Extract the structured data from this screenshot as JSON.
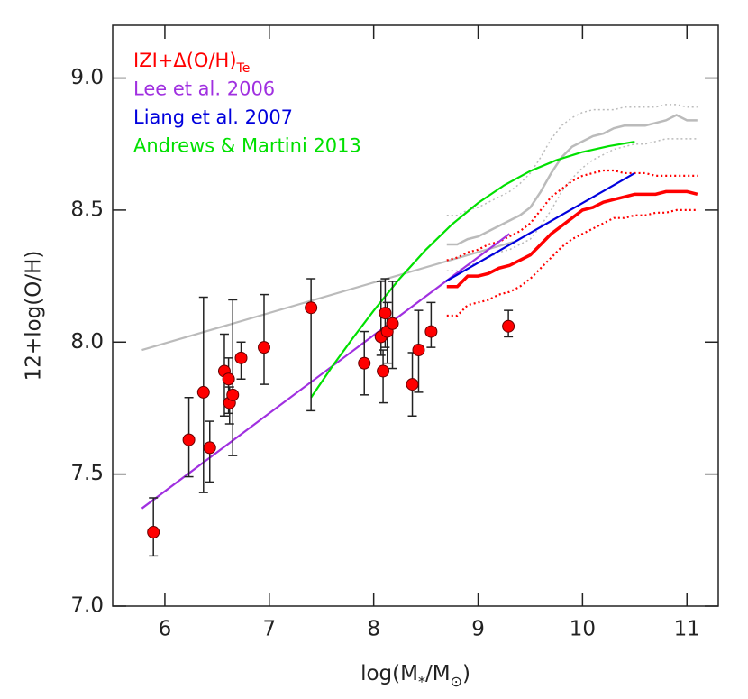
{
  "chart_data": {
    "type": "scatter",
    "xlabel_parts": [
      {
        "text": "log(M"
      },
      {
        "text": "*",
        "sub": true
      },
      {
        "text": "/M"
      },
      {
        "text": "⊙",
        "sub": true
      },
      {
        "text": ")"
      }
    ],
    "ylabel": "12+log(O/H)",
    "xlim": [
      5.5,
      11.3
    ],
    "ylim": [
      7.0,
      9.2
    ],
    "xticks": [
      6,
      7,
      8,
      9,
      10,
      11
    ],
    "yticks": [
      {
        "value": 7,
        "label": "7.0"
      },
      7.5,
      {
        "value": 8,
        "label": "8.0"
      },
      8.5,
      {
        "value": 9,
        "label": "9.0"
      }
    ],
    "series": [
      {
        "mode": "lines",
        "color": "#bbbbbb",
        "width": 2.2,
        "x": [
          5.78,
          9.34
        ],
        "values": [
          7.97,
          8.38
        ]
      },
      {
        "mode": "lines",
        "color": "#bbbbbb",
        "width": 1.5,
        "dash": true,
        "x": [
          8.7,
          8.8,
          8.9,
          9.0,
          9.1,
          9.2,
          9.3,
          9.4,
          9.5,
          9.6,
          9.7,
          9.8,
          9.9,
          10.0,
          10.1,
          10.2,
          10.3,
          10.4,
          10.5,
          10.6,
          10.7,
          10.8,
          10.9,
          11.0,
          11.1
        ],
        "values": [
          8.48,
          8.48,
          8.5,
          8.51,
          8.53,
          8.55,
          8.57,
          8.6,
          8.64,
          8.7,
          8.77,
          8.82,
          8.85,
          8.87,
          8.88,
          8.88,
          8.88,
          8.89,
          8.89,
          8.89,
          8.89,
          8.9,
          8.9,
          8.89,
          8.89
        ]
      },
      {
        "mode": "lines",
        "color": "#bbbbbb",
        "width": 1.5,
        "dash": true,
        "x": [
          8.7,
          8.8,
          8.9,
          9.0,
          9.1,
          9.2,
          9.3,
          9.4,
          9.5,
          9.6,
          9.7,
          9.8,
          9.9,
          10.0,
          10.1,
          10.2,
          10.3,
          10.4,
          10.5,
          10.6,
          10.7,
          10.8,
          10.9,
          11.0,
          11.1
        ],
        "values": [
          8.27,
          8.27,
          8.29,
          8.3,
          8.32,
          8.34,
          8.35,
          8.37,
          8.39,
          8.44,
          8.5,
          8.57,
          8.62,
          8.66,
          8.69,
          8.71,
          8.73,
          8.74,
          8.75,
          8.75,
          8.76,
          8.77,
          8.77,
          8.77,
          8.77
        ]
      },
      {
        "mode": "lines",
        "color": "#bbbbbb",
        "width": 2.5,
        "x": [
          8.7,
          8.8,
          8.9,
          9.0,
          9.1,
          9.2,
          9.3,
          9.4,
          9.5,
          9.6,
          9.7,
          9.8,
          9.9,
          10.0,
          10.1,
          10.2,
          10.3,
          10.4,
          10.5,
          10.6,
          10.7,
          10.8,
          10.9,
          11.0,
          11.1
        ],
        "values": [
          8.37,
          8.37,
          8.39,
          8.4,
          8.42,
          8.44,
          8.46,
          8.48,
          8.51,
          8.57,
          8.64,
          8.7,
          8.74,
          8.76,
          8.78,
          8.79,
          8.81,
          8.82,
          8.82,
          8.82,
          8.83,
          8.84,
          8.86,
          8.84,
          8.84
        ]
      },
      {
        "mode": "lines",
        "color": "#ff0000",
        "width": 2.2,
        "dash": true,
        "x": [
          8.7,
          8.8,
          8.9,
          9.0,
          9.1,
          9.2,
          9.3,
          9.4,
          9.5,
          9.6,
          9.7,
          9.8,
          9.9,
          10.0,
          10.1,
          10.2,
          10.3,
          10.4,
          10.5,
          10.6,
          10.7,
          10.8,
          10.9,
          11.0,
          11.1
        ],
        "values": [
          8.31,
          8.32,
          8.34,
          8.35,
          8.37,
          8.38,
          8.4,
          8.42,
          8.45,
          8.5,
          8.55,
          8.58,
          8.61,
          8.63,
          8.64,
          8.65,
          8.65,
          8.64,
          8.64,
          8.64,
          8.63,
          8.63,
          8.63,
          8.63,
          8.63
        ]
      },
      {
        "mode": "lines",
        "color": "#ff0000",
        "width": 2.2,
        "dash": true,
        "x": [
          8.7,
          8.8,
          8.9,
          9.0,
          9.1,
          9.2,
          9.3,
          9.4,
          9.5,
          9.6,
          9.7,
          9.8,
          9.9,
          10.0,
          10.1,
          10.2,
          10.3,
          10.4,
          10.5,
          10.6,
          10.7,
          10.8,
          10.9,
          11.0,
          11.1
        ],
        "values": [
          8.1,
          8.1,
          8.14,
          8.15,
          8.16,
          8.18,
          8.19,
          8.21,
          8.24,
          8.28,
          8.32,
          8.36,
          8.39,
          8.41,
          8.43,
          8.45,
          8.47,
          8.47,
          8.48,
          8.48,
          8.49,
          8.49,
          8.5,
          8.5,
          8.5
        ]
      },
      {
        "mode": "lines",
        "color": "#ff0000",
        "width": 3.5,
        "x": [
          8.7,
          8.8,
          8.9,
          9.0,
          9.1,
          9.2,
          9.3,
          9.4,
          9.5,
          9.6,
          9.7,
          9.8,
          9.9,
          10.0,
          10.1,
          10.2,
          10.3,
          10.4,
          10.5,
          10.6,
          10.7,
          10.8,
          10.9,
          11.0,
          11.1
        ],
        "values": [
          8.21,
          8.21,
          8.25,
          8.25,
          8.26,
          8.28,
          8.29,
          8.31,
          8.33,
          8.37,
          8.41,
          8.44,
          8.47,
          8.5,
          8.51,
          8.53,
          8.54,
          8.55,
          8.56,
          8.56,
          8.56,
          8.57,
          8.57,
          8.57,
          8.56
        ]
      },
      {
        "mode": "lines",
        "name": "Lee et al. 2006",
        "color": "#a030e0",
        "width": 2.2,
        "x": [
          5.78,
          9.3
        ],
        "values": [
          7.37,
          8.41
        ]
      },
      {
        "mode": "lines",
        "name": "Liang et al. 2007",
        "color": "#0000dd",
        "width": 2.2,
        "x": [
          8.69,
          10.5
        ],
        "values": [
          8.23,
          8.64
        ]
      },
      {
        "mode": "lines",
        "name": "Andrews & Martini 2013",
        "color": "#00e000",
        "width": 2.2,
        "x": [
          7.4,
          7.6,
          7.8,
          8.0,
          8.25,
          8.5,
          8.75,
          9.0,
          9.25,
          9.5,
          9.75,
          10.0,
          10.25,
          10.5
        ],
        "values": [
          7.79,
          7.906,
          8.015,
          8.119,
          8.241,
          8.35,
          8.446,
          8.527,
          8.594,
          8.648,
          8.689,
          8.72,
          8.742,
          8.759
        ]
      },
      {
        "mode": "markers",
        "name": "IZI+Δ(O/H)",
        "name_subscript": "Te",
        "color": "#ff0000",
        "x": [
          5.89,
          6.23,
          6.37,
          6.43,
          6.57,
          6.61,
          6.62,
          6.65,
          6.73,
          6.95,
          7.4,
          7.91,
          8.07,
          8.09,
          8.11,
          8.13,
          8.18,
          8.37,
          8.43,
          8.55,
          9.29
        ],
        "values": [
          7.28,
          7.63,
          7.81,
          7.6,
          7.89,
          7.86,
          7.77,
          7.8,
          7.94,
          7.98,
          8.13,
          7.92,
          8.02,
          7.89,
          8.11,
          8.04,
          8.07,
          7.84,
          7.97,
          8.04,
          8.06
        ],
        "y_low": [
          7.19,
          7.49,
          7.43,
          7.47,
          7.72,
          7.73,
          7.69,
          7.57,
          7.86,
          7.84,
          7.74,
          7.8,
          7.95,
          7.77,
          7.98,
          7.92,
          7.9,
          7.72,
          7.81,
          7.98,
          8.02
        ],
        "y_high": [
          7.41,
          7.79,
          8.17,
          7.7,
          8.03,
          7.94,
          7.83,
          8.16,
          8.0,
          8.18,
          8.24,
          8.04,
          8.23,
          7.97,
          8.24,
          8.15,
          8.23,
          7.96,
          8.12,
          8.15,
          8.12
        ]
      }
    ],
    "legend_order": [
      10,
      7,
      8,
      9
    ]
  }
}
